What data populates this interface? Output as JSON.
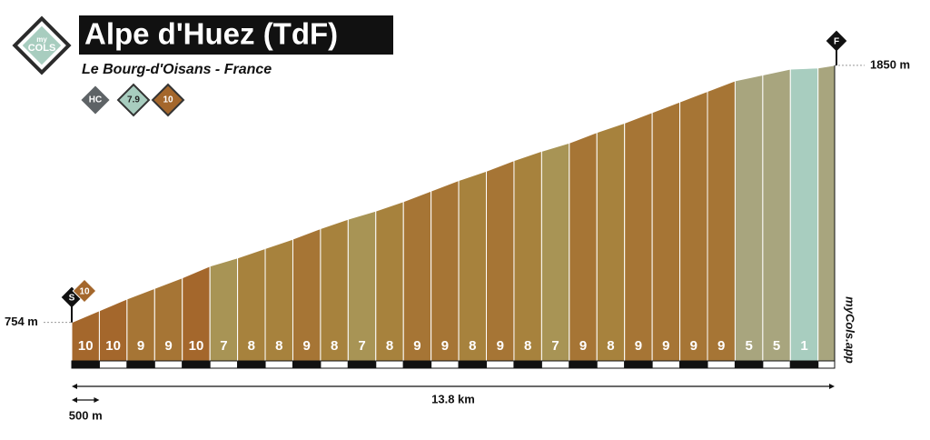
{
  "logo": {
    "top": "my",
    "bottom": "COLS"
  },
  "title": "Alpe d'Huez (TdF)",
  "subtitle": "Le Bourg-d'Oisans - France",
  "badges": [
    "HC",
    "7.9",
    "10"
  ],
  "chart_data": {
    "type": "profile",
    "start_label": "S",
    "finish_label": "F",
    "start_badge": "10",
    "start_elevation": {
      "value": 754,
      "label": "754 m"
    },
    "end_elevation": {
      "value": 1850,
      "label": "1850 m"
    },
    "distance": {
      "value": 13.8,
      "label": "13.8 km"
    },
    "segment": {
      "value": 0.5,
      "label": "500 m"
    },
    "values": [
      10,
      10,
      9,
      9,
      10,
      7,
      8,
      8,
      9,
      8,
      7,
      8,
      9,
      9,
      8,
      9,
      8,
      7,
      9,
      8,
      9,
      9,
      9,
      9,
      5,
      5,
      1,
      null
    ],
    "colors": [
      "#a4672c",
      "#a4672c",
      "#a67535",
      "#a67535",
      "#a4672c",
      "#a89455",
      "#a7823d",
      "#a7823d",
      "#a67535",
      "#a7823d",
      "#a89455",
      "#a7823d",
      "#a67535",
      "#a67535",
      "#a7823d",
      "#a67535",
      "#a7823d",
      "#a89455",
      "#a67535",
      "#a7823d",
      "#a67535",
      "#a67535",
      "#a67535",
      "#a67535",
      "#a8a57e",
      "#a8a57e",
      "#a8cdbf",
      "#a8a57e"
    ],
    "ylim": [
      590,
      1900
    ],
    "brand": "myCols.app"
  }
}
